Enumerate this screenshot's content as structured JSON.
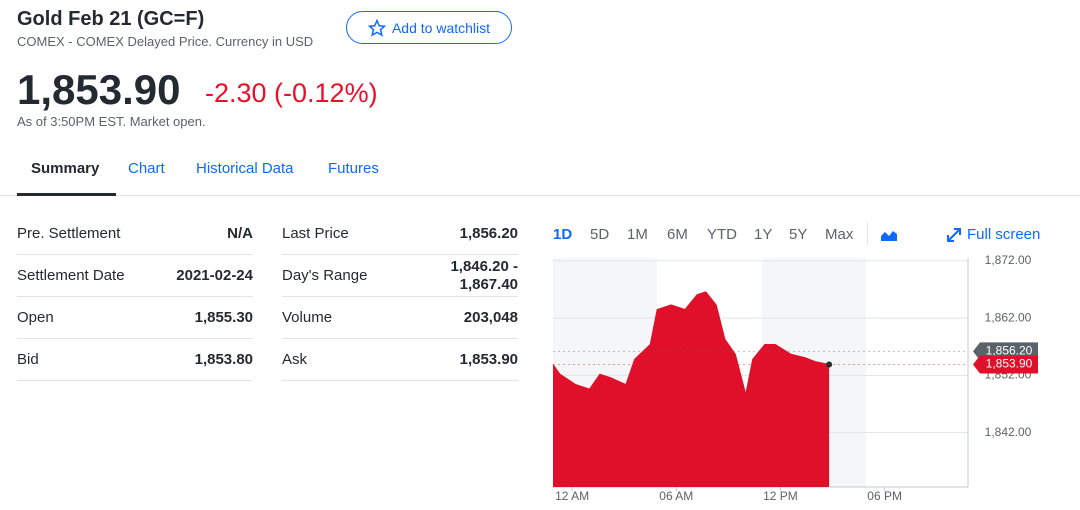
{
  "header": {
    "title": "Gold Feb 21 (GC=F)",
    "subtitle": "COMEX - COMEX Delayed Price. Currency in USD",
    "watchlist_button": "Add to watchlist"
  },
  "quote": {
    "price": "1,853.90",
    "change": "-2.30 (-0.12%)",
    "as_of": "As of 3:50PM EST. Market open."
  },
  "tabs": [
    "Summary",
    "Chart",
    "Historical Data",
    "Futures"
  ],
  "table_left": [
    [
      "Pre. Settlement",
      "N/A"
    ],
    [
      "Settlement Date",
      "2021-02-24"
    ],
    [
      "Open",
      "1,855.30"
    ],
    [
      "Bid",
      "1,853.80"
    ]
  ],
  "table_right": [
    [
      "Last Price",
      "1,856.20"
    ],
    [
      "Day's Range",
      "1,846.20 - 1,867.40"
    ],
    [
      "Volume",
      "203,048"
    ],
    [
      "Ask",
      "1,853.90"
    ]
  ],
  "range_buttons": [
    "1D",
    "5D",
    "1M",
    "6M",
    "YTD",
    "1Y",
    "5Y",
    "Max"
  ],
  "full_screen": "Full screen",
  "chart_data": {
    "type": "area",
    "x": [
      -1.1,
      -0.7,
      0.2,
      1.0,
      1.6,
      2.2,
      3.1,
      3.6,
      4.5,
      4.9,
      5.7,
      6.5,
      7.2,
      7.7,
      8.3,
      8.8,
      9.4,
      10.0,
      10.4,
      11.1,
      11.7,
      12.6,
      13.4,
      14.0,
      14.8
    ],
    "series": [
      {
        "color": "#e0102b",
        "values": [
          1853.9,
          1852.2,
          1850.4,
          1849.6,
          1852.2,
          1851.6,
          1850.4,
          1854.8,
          1857.4,
          1863.5,
          1864.3,
          1863.5,
          1866.1,
          1866.6,
          1864.3,
          1858.3,
          1855.7,
          1848.7,
          1854.8,
          1857.4,
          1857.4,
          1855.7,
          1855.1,
          1854.4,
          1853.9
        ]
      }
    ],
    "xlim": [
      -1.1,
      22.8
    ],
    "xticks": [
      {
        "value": 0,
        "label": "12 AM"
      },
      {
        "value": 6,
        "label": "06 AM"
      },
      {
        "value": 12,
        "label": "12 PM"
      },
      {
        "value": 18,
        "label": "06 PM"
      }
    ],
    "ylim": [
      1832.5,
      1872.5
    ],
    "yticks": [
      {
        "value": 1842,
        "label": "1,842.00"
      },
      {
        "value": 1852,
        "label": "1,852.00"
      },
      {
        "value": 1862,
        "label": "1,862.00"
      },
      {
        "value": 1872,
        "label": "1,872.00"
      }
    ],
    "grid": true,
    "reference_lines": [
      {
        "value": 1856.2,
        "label": "1,856.20",
        "color": "#5b636a"
      },
      {
        "value": 1853.9,
        "label": "1,853.90",
        "color": "#e0102b"
      }
    ]
  }
}
